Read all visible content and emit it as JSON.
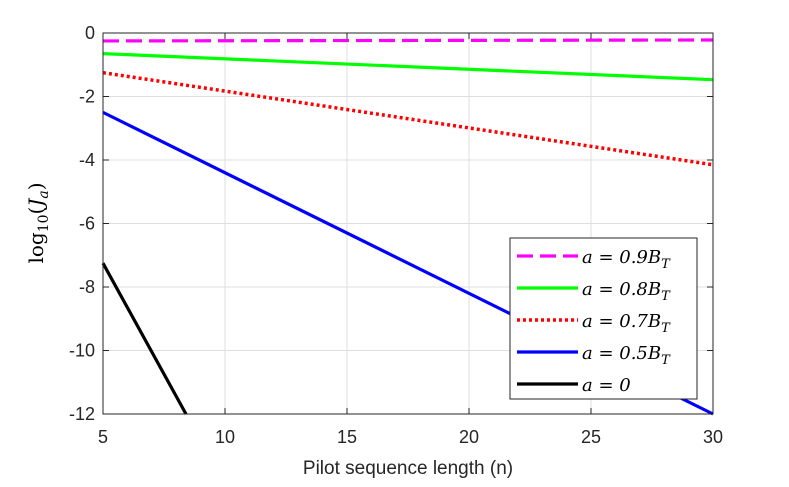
{
  "chart_data": {
    "type": "line",
    "title": "",
    "xlabel": "Pilot sequence length (n)",
    "ylabel": "log10(Ja)",
    "ylabel_parts": {
      "func": "log",
      "sub": "10",
      "open": "(",
      "var": "J",
      "var_sub": "a",
      "close": ")"
    },
    "xlim": [
      5,
      30
    ],
    "ylim": [
      -12,
      0
    ],
    "xticks": [
      5,
      10,
      15,
      20,
      25,
      30
    ],
    "yticks": [
      0,
      -2,
      -4,
      -6,
      -8,
      -10,
      -12
    ],
    "xtick_labels": [
      "5",
      "10",
      "15",
      "20",
      "25",
      "30"
    ],
    "ytick_labels": [
      "0",
      "-2",
      "-4",
      "-6",
      "-8",
      "-10",
      "-12"
    ],
    "grid": true,
    "legend_position": "lower-right",
    "series": [
      {
        "name": "a = 0.9B_T",
        "label_parts": {
          "lhs": "a = 0.9",
          "var": "B",
          "sub": "T"
        },
        "color": "#ff00ff",
        "style": "dashed",
        "x": [
          5,
          30
        ],
        "y": [
          -0.25,
          -0.22
        ]
      },
      {
        "name": "a = 0.8B_T",
        "label_parts": {
          "lhs": "a = 0.8",
          "var": "B",
          "sub": "T"
        },
        "color": "#00ff00",
        "style": "solid",
        "x": [
          5,
          30
        ],
        "y": [
          -0.65,
          -1.47
        ]
      },
      {
        "name": "a = 0.7B_T",
        "label_parts": {
          "lhs": "a = 0.7",
          "var": "B",
          "sub": "T"
        },
        "color": "#ff0000",
        "style": "dotted",
        "x": [
          5,
          30
        ],
        "y": [
          -1.25,
          -4.15
        ]
      },
      {
        "name": "a = 0.5B_T",
        "label_parts": {
          "lhs": "a = 0.5",
          "var": "B",
          "sub": "T"
        },
        "color": "#0000ff",
        "style": "solid",
        "x": [
          5,
          30
        ],
        "y": [
          -2.5,
          -12.0
        ]
      },
      {
        "name": "a = 0",
        "label_parts": {
          "lhs": "a = 0",
          "var": "",
          "sub": ""
        },
        "color": "#000000",
        "style": "solid",
        "x": [
          5,
          8.4
        ],
        "y": [
          -7.25,
          -12.0
        ]
      }
    ]
  }
}
